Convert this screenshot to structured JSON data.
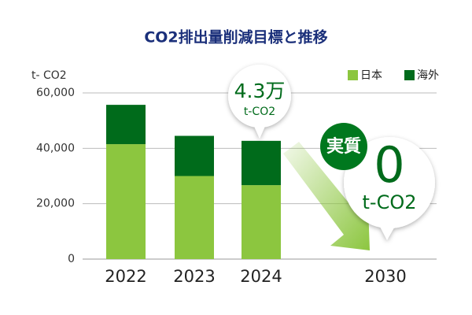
{
  "chart_data": {
    "type": "stacked-bar",
    "title": "CO2排出量削減目標と推移",
    "y_label": "t- CO2",
    "categories": [
      "2022",
      "2023",
      "2024",
      "2030"
    ],
    "series": [
      {
        "name": "日本",
        "color": "#8cc63f",
        "values": [
          41500,
          30000,
          26700,
          null
        ]
      },
      {
        "name": "海外",
        "color": "#006b1b",
        "values": [
          14200,
          14500,
          16000,
          null
        ]
      }
    ],
    "ylim": [
      0,
      60000
    ],
    "yticks": [
      0,
      {
        "value": 20000,
        "label": "20,000"
      },
      {
        "value": 40000,
        "label": "40,000"
      },
      {
        "value": 60000,
        "label": "60,000"
      }
    ],
    "grid": true,
    "legend": "top-right",
    "annotations": [
      "4.3万",
      "t-CO2",
      "実質",
      "0",
      "t-CO2"
    ]
  }
}
